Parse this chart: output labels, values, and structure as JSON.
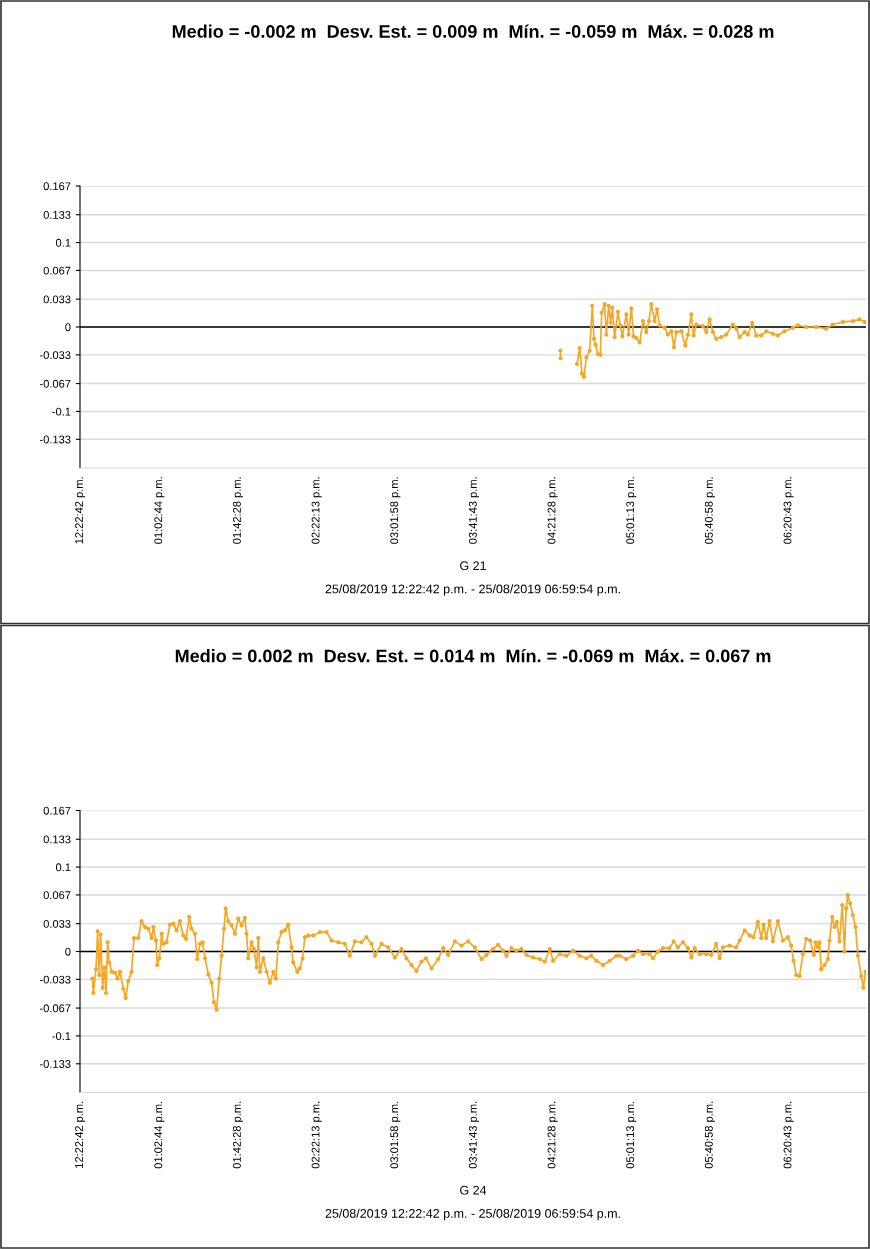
{
  "chart_data": [
    {
      "type": "line",
      "title": "Medio = -0.002 m  Desv. Est. = 0.009 m  Mín. = -0.059 m  Máx. = 0.028 m",
      "xlabel": "G 21",
      "annotations": [
        "25/08/2019 12:22:42 p.m. - 25/08/2019 06:59:54 p.m."
      ],
      "xlim": [
        "2019-08-25T12:22:42",
        "2019-08-25T18:59:54"
      ],
      "ylim": [
        -0.167,
        0.167
      ],
      "xticks": [
        {
          "value": "2019-08-25T12:22:42",
          "label": "12:22:42 p.m."
        },
        {
          "value": "2019-08-25T13:02:44",
          "label": "01:02:44 p.m."
        },
        {
          "value": "2019-08-25T13:42:28",
          "label": "01:42:28 p.m."
        },
        {
          "value": "2019-08-25T14:22:13",
          "label": "02:22:13 p.m."
        },
        {
          "value": "2019-08-25T15:01:58",
          "label": "03:01:58 p.m."
        },
        {
          "value": "2019-08-25T15:41:43",
          "label": "03:41:43 p.m."
        },
        {
          "value": "2019-08-25T16:21:28",
          "label": "04:21:28 p.m."
        },
        {
          "value": "2019-08-25T17:01:13",
          "label": "05:01:13 p.m."
        },
        {
          "value": "2019-08-25T17:40:58",
          "label": "05:40:58 p.m."
        },
        {
          "value": "2019-08-25T18:20:43",
          "label": "06:20:43 p.m."
        }
      ],
      "yticks": [
        0.167,
        0.133,
        0.1,
        0.067,
        0.033,
        0,
        -0.033,
        -0.067,
        -0.1,
        -0.133
      ],
      "grid": "y",
      "marker": "circle",
      "line_style": "solid",
      "ref_lines": [
        {
          "axis": "y",
          "value": 0,
          "color": "#000000"
        }
      ],
      "series": [
        {
          "color": "#f5a623",
          "x": [
            "2019-08-25T16:25:26",
            "2019-08-25T16:25:34",
            "2019-08-25T16:30:00",
            "2019-08-25T16:33:50",
            "2019-08-25T16:35:13",
            "2019-08-25T16:36:22",
            "2019-08-25T16:37:23",
            "2019-08-25T16:38:35",
            "2019-08-25T16:40:16",
            "2019-08-25T16:41:35",
            "2019-08-25T16:42:25",
            "2019-08-25T16:43:16",
            "2019-08-25T16:44:28",
            "2019-08-25T16:45:40",
            "2019-08-25T16:46:19",
            "2019-08-25T16:47:49",
            "2019-08-25T16:48:40",
            "2019-08-25T16:49:52",
            "2019-08-25T16:50:53",
            "2019-08-25T16:51:43",
            "2019-08-25T16:52:52",
            "2019-08-25T16:54:32",
            "2019-08-25T16:55:44",
            "2019-08-25T16:56:46",
            "2019-08-25T16:58:48",
            "2019-08-25T16:59:56",
            "2019-08-25T17:01:19",
            "2019-08-25T17:02:28",
            "2019-08-25T17:03:50",
            "2019-08-25T17:05:31",
            "2019-08-25T17:07:12",
            "2019-08-25T17:08:53",
            "2019-08-25T17:10:12",
            "2019-08-25T17:11:24",
            "2019-08-25T17:13:05",
            "2019-08-25T17:14:17",
            "2019-08-25T17:15:36",
            "2019-08-25T17:18:07",
            "2019-08-25T17:19:48",
            "2019-08-25T17:21:29",
            "2019-08-25T17:22:52",
            "2019-08-25T17:24:00",
            "2019-08-25T17:26:35",
            "2019-08-25T17:28:34",
            "2019-08-25T17:29:56",
            "2019-08-25T17:31:37",
            "2019-08-25T17:32:46",
            "2019-08-25T17:34:08",
            "2019-08-25T17:37:30",
            "2019-08-25T17:39:11",
            "2019-08-25T17:40:52",
            "2019-08-25T17:42:32",
            "2019-08-25T17:44:13",
            "2019-08-25T17:46:44",
            "2019-08-25T17:49:16",
            "2019-08-25T17:52:37",
            "2019-08-25T17:54:22",
            "2019-08-25T17:56:02",
            "2019-08-25T17:58:34",
            "2019-08-25T18:00:14",
            "2019-08-25T18:02:24",
            "2019-08-25T18:04:26",
            "2019-08-25T18:06:58",
            "2019-08-25T18:09:29",
            "2019-08-25T18:12:50",
            "2019-08-25T18:15:22",
            "2019-08-25T18:18:43",
            "2019-08-25T18:22:59",
            "2019-08-25T18:25:30",
            "2019-08-25T18:29:42",
            "2019-08-25T18:34:44",
            "2019-08-25T18:39:47",
            "2019-08-25T18:43:08",
            "2019-08-25T18:48:11",
            "2019-08-25T18:53:17",
            "2019-08-25T18:56:38",
            "2019-08-25T18:59:10"
          ],
          "values": [
            -0.028,
            -0.037,
            null,
            -0.044,
            -0.025,
            -0.055,
            -0.059,
            -0.036,
            -0.028,
            0.025,
            -0.014,
            -0.021,
            -0.032,
            -0.033,
            0.017,
            0.027,
            -0.009,
            0.025,
            0.005,
            0.023,
            -0.012,
            0.018,
            0.002,
            -0.011,
            0.015,
            -0.009,
            0.022,
            -0.011,
            -0.013,
            -0.018,
            0.007,
            -0.006,
            0.007,
            0.027,
            0.007,
            0.021,
            0.002,
            -0.001,
            -0.009,
            -0.005,
            -0.024,
            -0.006,
            -0.005,
            -0.022,
            -0.009,
            0.015,
            -0.01,
            0.003,
            0.001,
            -0.006,
            0.009,
            -0.006,
            -0.014,
            -0.012,
            -0.009,
            0.003,
            -0.002,
            -0.012,
            -0.006,
            -0.009,
            0.005,
            -0.01,
            -0.01,
            -0.005,
            -0.008,
            -0.01,
            -0.005,
            -0.001,
            0.002,
            0.0,
            0.0,
            -0.002,
            0.003,
            0.006,
            0.007,
            0.009,
            0.006
          ]
        }
      ]
    },
    {
      "type": "line",
      "title": "Medio = 0.002 m  Desv. Est. = 0.014 m  Mín. = -0.069 m  Máx. = 0.067 m",
      "xlabel": "G 24",
      "annotations": [
        "25/08/2019 12:22:42 p.m. - 25/08/2019 06:59:54 p.m."
      ],
      "xlim": [
        "2019-08-25T12:22:42",
        "2019-08-25T18:59:54"
      ],
      "ylim": [
        -0.167,
        0.167
      ],
      "xticks": [
        {
          "value": "2019-08-25T12:22:42",
          "label": "12:22:42 p.m."
        },
        {
          "value": "2019-08-25T13:02:44",
          "label": "01:02:44 p.m."
        },
        {
          "value": "2019-08-25T13:42:28",
          "label": "01:42:28 p.m."
        },
        {
          "value": "2019-08-25T14:22:13",
          "label": "02:22:13 p.m."
        },
        {
          "value": "2019-08-25T15:01:58",
          "label": "03:01:58 p.m."
        },
        {
          "value": "2019-08-25T15:41:43",
          "label": "03:41:43 p.m."
        },
        {
          "value": "2019-08-25T16:21:28",
          "label": "04:21:28 p.m."
        },
        {
          "value": "2019-08-25T17:01:13",
          "label": "05:01:13 p.m."
        },
        {
          "value": "2019-08-25T17:40:58",
          "label": "05:40:58 p.m."
        },
        {
          "value": "2019-08-25T18:20:43",
          "label": "06:20:43 p.m."
        }
      ],
      "yticks": [
        0.167,
        0.133,
        0.1,
        0.067,
        0.033,
        0,
        -0.033,
        -0.067,
        -0.1,
        -0.133
      ],
      "grid": "y",
      "marker": "circle",
      "line_style": "solid",
      "ref_lines": [
        {
          "axis": "y",
          "value": 0,
          "color": "#000000"
        }
      ],
      "series": [
        {
          "color": "#f5a623",
          "x": [
            "2019-08-25T12:28:55",
            "2019-08-25T12:29:28",
            "2019-08-25T12:30:47",
            "2019-08-25T12:31:37",
            "2019-08-25T12:32:28",
            "2019-08-25T12:33:07",
            "2019-08-25T12:34:08",
            "2019-08-25T12:34:59",
            "2019-08-25T12:35:49",
            "2019-08-25T12:36:40",
            "2019-08-25T12:37:30",
            "2019-08-25T12:38:42",
            "2019-08-25T12:40:23",
            "2019-08-25T12:41:35",
            "2019-08-25T12:42:54",
            "2019-08-25T12:44:35",
            "2019-08-25T12:45:47",
            "2019-08-25T12:47:06",
            "2019-08-25T12:48:47",
            "2019-08-25T12:49:59",
            "2019-08-25T12:52:08",
            "2019-08-25T12:53:49",
            "2019-08-25T12:55:34",
            "2019-08-25T12:57:14",
            "2019-08-25T12:58:55",
            "2019-08-25T12:59:46",
            "2019-08-25T13:01:05",
            "2019-08-25T13:01:44",
            "2019-08-25T13:02:46",
            "2019-08-25T13:03:58",
            "2019-08-25T13:04:48",
            "2019-08-25T13:06:29",
            "2019-08-25T13:08:10",
            "2019-08-25T13:09:50",
            "2019-08-25T13:11:31",
            "2019-08-25T13:13:12",
            "2019-08-25T13:14:53",
            "2019-08-25T13:16:16",
            "2019-08-25T13:17:56",
            "2019-08-25T13:19:05",
            "2019-08-25T13:20:46",
            "2019-08-25T13:21:58",
            "2019-08-25T13:23:20",
            "2019-08-25T13:24:40",
            "2019-08-25T13:25:52",
            "2019-08-25T13:27:32",
            "2019-08-25T13:29:13",
            "2019-08-25T13:30:22",
            "2019-08-25T13:31:44",
            "2019-08-25T13:33:04",
            "2019-08-25T13:34:16",
            "2019-08-25T13:35:28",
            "2019-08-25T13:36:18",
            "2019-08-25T13:37:37",
            "2019-08-25T13:39:18",
            "2019-08-25T13:40:59",
            "2019-08-25T13:42:40",
            "2019-08-25T13:44:20",
            "2019-08-25T13:46:01",
            "2019-08-25T13:46:52",
            "2019-08-25T13:47:42",
            "2019-08-25T13:49:23",
            "2019-08-25T13:50:35",
            "2019-08-25T13:51:58",
            "2019-08-25T13:52:48",
            "2019-08-25T13:53:38",
            "2019-08-25T13:55:19",
            "2019-08-25T13:57:00",
            "2019-08-25T13:58:41",
            "2019-08-25T14:00:22",
            "2019-08-25T14:01:41",
            "2019-08-25T14:02:53",
            "2019-08-25T14:04:34",
            "2019-08-25T14:06:14",
            "2019-08-25T14:07:55",
            "2019-08-25T14:09:36",
            "2019-08-25T14:10:26",
            "2019-08-25T14:12:29",
            "2019-08-25T14:13:48",
            "2019-08-25T14:15:11",
            "2019-08-25T14:16:19",
            "2019-08-25T14:18:00",
            "2019-08-25T14:20:35",
            "2019-08-25T14:23:56",
            "2019-08-25T14:27:18",
            "2019-08-25T14:29:49",
            "2019-08-25T14:33:11",
            "2019-08-25T14:36:32",
            "2019-08-25T14:39:04",
            "2019-08-25T14:41:35",
            "2019-08-25T14:44:56",
            "2019-08-25T14:47:28",
            "2019-08-25T14:50:02",
            "2019-08-25T14:51:43",
            "2019-08-25T14:55:05",
            "2019-08-25T14:58:26",
            "2019-08-25T15:01:48",
            "2019-08-25T15:05:10",
            "2019-08-25T15:07:41",
            "2019-08-25T15:10:12",
            "2019-08-25T15:12:43",
            "2019-08-25T15:15:14",
            "2019-08-25T15:17:28",
            "2019-08-25T15:20:20",
            "2019-08-25T15:23:42",
            "2019-08-25T15:26:13",
            "2019-08-25T15:28:44",
            "2019-08-25T15:32:06",
            "2019-08-25T15:35:28",
            "2019-08-25T15:38:49",
            "2019-08-25T15:42:11",
            "2019-08-25T15:45:36",
            "2019-08-25T15:48:07",
            "2019-08-25T15:51:29",
            "2019-08-25T15:54:00",
            "2019-08-25T15:56:31",
            "2019-08-25T15:58:12",
            "2019-08-25T16:00:43",
            "2019-08-25T16:03:14",
            "2019-08-25T16:05:46",
            "2019-08-25T16:08:17",
            "2019-08-25T16:11:38",
            "2019-08-25T16:15:04",
            "2019-08-25T16:17:35",
            "2019-08-25T16:20:06",
            "2019-08-25T16:21:47",
            "2019-08-25T16:25:08",
            "2019-08-25T16:28:30",
            "2019-08-25T16:31:52",
            "2019-08-25T16:35:13",
            "2019-08-25T16:38:35",
            "2019-08-25T16:41:06",
            "2019-08-25T16:43:41",
            "2019-08-25T16:47:02",
            "2019-08-25T16:50:24",
            "2019-08-25T16:53:46",
            "2019-08-25T16:55:23",
            "2019-08-25T16:58:44",
            "2019-08-25T17:02:10",
            "2019-08-25T17:04:41",
            "2019-08-25T17:07:12",
            "2019-08-25T17:10:34",
            "2019-08-25T17:12:14",
            "2019-08-25T17:14:46",
            "2019-08-25T17:17:17",
            "2019-08-25T17:20:38",
            "2019-08-25T17:22:41",
            "2019-08-25T17:24:50",
            "2019-08-25T17:27:25",
            "2019-08-25T17:29:56",
            "2019-08-25T17:31:37",
            "2019-08-25T17:33:18",
            "2019-08-25T17:35:49",
            "2019-08-25T17:39:11",
            "2019-08-25T17:41:42",
            "2019-08-25T17:44:13",
            "2019-08-25T17:45:54",
            "2019-08-25T17:47:35",
            "2019-08-25T17:50:56",
            "2019-08-25T17:54:18",
            "2019-08-25T17:56:02",
            "2019-08-25T17:58:34",
            "2019-08-25T18:01:05",
            "2019-08-25T18:03:04",
            "2019-08-25T18:05:17",
            "2019-08-25T18:06:58",
            "2019-08-25T18:08:10",
            "2019-08-25T18:09:29",
            "2019-08-25T18:11:10",
            "2019-08-25T18:12:50",
            "2019-08-25T18:15:22",
            "2019-08-25T18:17:53",
            "2019-08-25T18:20:24",
            "2019-08-25T18:22:05",
            "2019-08-25T18:23:17",
            "2019-08-25T18:24:40",
            "2019-08-25T18:26:20",
            "2019-08-25T18:28:01",
            "2019-08-25T18:29:42",
            "2019-08-25T18:31:41",
            "2019-08-25T18:33:32",
            "2019-08-25T18:34:23",
            "2019-08-25T18:35:35",
            "2019-08-25T18:36:25",
            "2019-08-25T18:37:16",
            "2019-08-25T18:38:56",
            "2019-08-25T18:40:37",
            "2019-08-25T18:41:28",
            "2019-08-25T18:42:50",
            "2019-08-25T18:43:59",
            "2019-08-25T18:45:11",
            "2019-08-25T18:46:30",
            "2019-08-25T18:47:53",
            "2019-08-25T18:49:01",
            "2019-08-25T18:49:52",
            "2019-08-25T18:50:42",
            "2019-08-25T18:51:54",
            "2019-08-25T18:53:17",
            "2019-08-25T18:54:36",
            "2019-08-25T18:55:48",
            "2019-08-25T18:57:29",
            "2019-08-25T18:58:37",
            "2019-08-25T18:59:38"
          ],
          "values": [
            -0.032,
            -0.049,
            -0.021,
            0.024,
            -0.028,
            0.02,
            -0.043,
            -0.019,
            -0.049,
            0.011,
            -0.013,
            -0.024,
            -0.025,
            -0.032,
            -0.024,
            -0.044,
            -0.055,
            -0.035,
            -0.024,
            0.016,
            0.016,
            0.036,
            0.029,
            0.027,
            0.016,
            0.029,
            0.013,
            -0.016,
            -0.008,
            0.021,
            0.009,
            0.011,
            0.032,
            0.033,
            0.025,
            0.036,
            0.019,
            0.015,
            0.041,
            0.027,
            0.021,
            -0.009,
            0.009,
            0.011,
            -0.008,
            -0.027,
            -0.037,
            -0.06,
            -0.069,
            -0.032,
            -0.005,
            0.027,
            0.051,
            0.036,
            0.031,
            0.021,
            0.039,
            0.031,
            0.04,
            0.021,
            -0.008,
            0.011,
            0.003,
            -0.019,
            0.016,
            -0.024,
            -0.008,
            -0.024,
            -0.037,
            -0.024,
            -0.032,
            0.011,
            0.023,
            0.025,
            0.032,
            0.005,
            -0.013,
            -0.024,
            -0.02,
            -0.008,
            0.017,
            0.019,
            0.019,
            0.023,
            0.023,
            0.013,
            0.011,
            0.009,
            -0.005,
            0.012,
            0.011,
            0.017,
            0.009,
            -0.005,
            0.009,
            0.005,
            -0.007,
            0.003,
            -0.008,
            -0.016,
            -0.023,
            -0.012,
            -0.008,
            -0.02,
            -0.009,
            0.004,
            -0.004,
            0.012,
            0.007,
            0.012,
            0.005,
            -0.009,
            -0.004,
            0.003,
            0.008,
            0.001,
            -0.005,
            0.004,
            0.001,
            0.003,
            -0.004,
            -0.007,
            -0.009,
            -0.012,
            0.003,
            -0.011,
            -0.003,
            -0.005,
            0.001,
            -0.005,
            -0.008,
            -0.005,
            -0.011,
            -0.016,
            -0.011,
            -0.005,
            -0.005,
            -0.009,
            -0.005,
            0.001,
            -0.003,
            -0.003,
            -0.008,
            0.0,
            0.004,
            0.004,
            0.012,
            0.005,
            0.011,
            0.004,
            -0.007,
            0.004,
            -0.003,
            -0.003,
            -0.004,
            0.009,
            -0.008,
            0.005,
            0.007,
            0.005,
            0.013,
            0.025,
            0.019,
            0.017,
            0.035,
            0.016,
            0.032,
            0.016,
            0.036,
            0.012,
            0.036,
            0.013,
            0.017,
            0.007,
            -0.011,
            -0.028,
            -0.029,
            -0.003,
            0.015,
            0.013,
            -0.004,
            0.011,
            0.005,
            0.011,
            -0.021,
            -0.016,
            -0.009,
            0.013,
            0.041,
            0.029,
            0.035,
            0.012,
            0.055,
            0.0,
            0.051,
            0.067,
            0.057,
            0.043,
            0.029,
            -0.005,
            -0.029,
            -0.043,
            -0.024
          ]
        }
      ]
    }
  ]
}
